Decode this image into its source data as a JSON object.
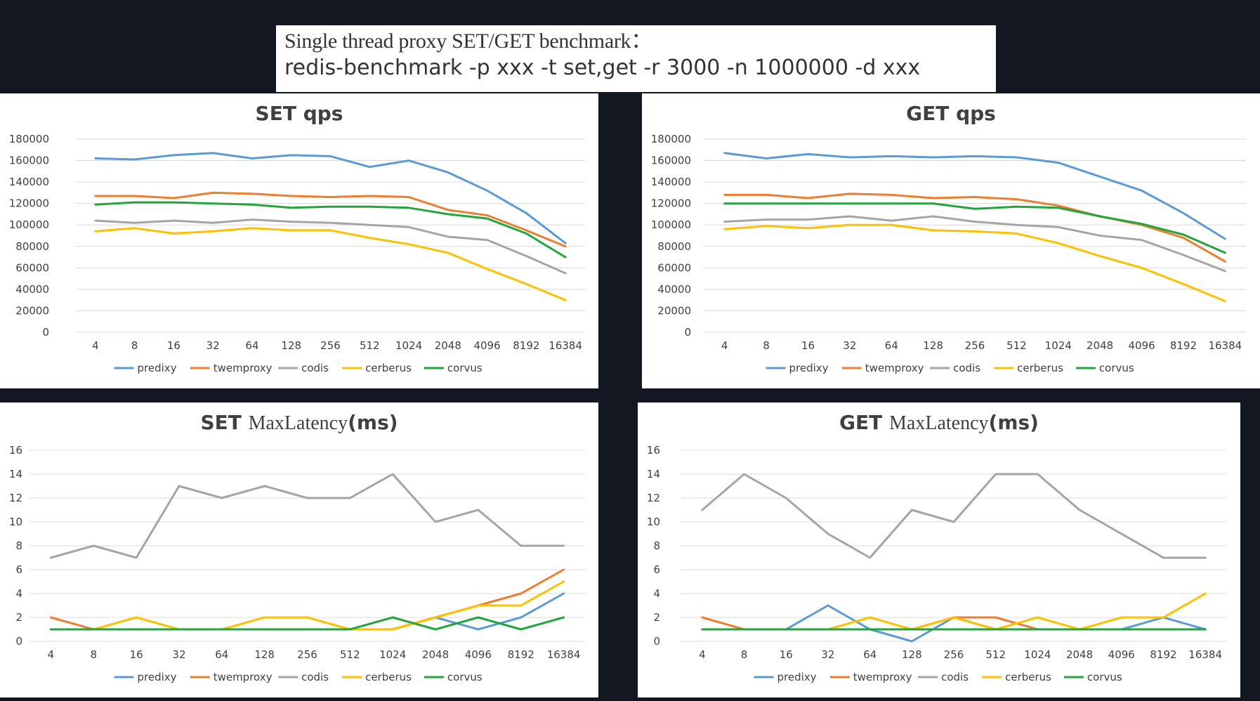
{
  "header": {
    "line1": "Single thread proxy SET/GET benchmark：",
    "line2": "redis-benchmark -p xxx -t set,get -r 3000 -n 1000000 -d xxx"
  },
  "colors": {
    "predixy": "#5b9bd5",
    "twemproxy": "#ed7d31",
    "codis": "#a5a5a5",
    "cerberus": "#ffc000",
    "corvus": "#22a63c"
  },
  "chart_data": [
    {
      "type": "line",
      "title_bold_left": "SET  qps",
      "title_serif": "",
      "title_bold_right": "",
      "categories": [
        "4",
        "8",
        "16",
        "32",
        "64",
        "128",
        "256",
        "512",
        "1024",
        "2048",
        "4096",
        "8192",
        "16384"
      ],
      "ylim": [
        0,
        180000
      ],
      "yticks": [
        0,
        20000,
        40000,
        60000,
        80000,
        100000,
        120000,
        140000,
        160000,
        180000
      ],
      "grid": true,
      "legend_position": "bottom",
      "series": [
        {
          "name": "predixy",
          "values": [
            162000,
            161000,
            165000,
            167000,
            162000,
            165000,
            164000,
            154000,
            160000,
            149000,
            132000,
            111000,
            83000
          ]
        },
        {
          "name": "twemproxy",
          "values": [
            127000,
            127000,
            125000,
            130000,
            129000,
            127000,
            126000,
            127000,
            126000,
            114000,
            109000,
            95000,
            80000
          ]
        },
        {
          "name": "codis",
          "values": [
            104000,
            102000,
            104000,
            102000,
            105000,
            103000,
            102000,
            100000,
            98000,
            89000,
            86000,
            71000,
            55000
          ]
        },
        {
          "name": "cerberus",
          "values": [
            94000,
            97000,
            92000,
            94000,
            97000,
            95000,
            95000,
            88000,
            82000,
            74000,
            59000,
            45000,
            30000
          ]
        },
        {
          "name": "corvus",
          "values": [
            119000,
            121000,
            121000,
            120000,
            119000,
            116000,
            117000,
            117000,
            116000,
            110000,
            106000,
            92000,
            70000
          ]
        }
      ]
    },
    {
      "type": "line",
      "title_bold_left": "GET  qps",
      "title_serif": "",
      "title_bold_right": "",
      "categories": [
        "4",
        "8",
        "16",
        "32",
        "64",
        "128",
        "256",
        "512",
        "1024",
        "2048",
        "4096",
        "8192",
        "16384"
      ],
      "ylim": [
        0,
        180000
      ],
      "yticks": [
        0,
        20000,
        40000,
        60000,
        80000,
        100000,
        120000,
        140000,
        160000,
        180000
      ],
      "grid": true,
      "legend_position": "bottom",
      "series": [
        {
          "name": "predixy",
          "values": [
            167000,
            162000,
            166000,
            163000,
            164000,
            163000,
            164000,
            163000,
            158000,
            145000,
            132000,
            111000,
            87000
          ]
        },
        {
          "name": "twemproxy",
          "values": [
            128000,
            128000,
            125000,
            129000,
            128000,
            125000,
            126000,
            124000,
            118000,
            108000,
            100000,
            88000,
            66000
          ]
        },
        {
          "name": "codis",
          "values": [
            103000,
            105000,
            105000,
            108000,
            104000,
            108000,
            103000,
            100000,
            98000,
            90000,
            86000,
            72000,
            57000
          ]
        },
        {
          "name": "cerberus",
          "values": [
            96000,
            99000,
            97000,
            100000,
            100000,
            95000,
            94000,
            92000,
            83000,
            71000,
            60000,
            45000,
            29000
          ]
        },
        {
          "name": "corvus",
          "values": [
            120000,
            120000,
            120000,
            120000,
            120000,
            120000,
            115000,
            117000,
            116000,
            108000,
            101000,
            91000,
            74000
          ]
        }
      ]
    },
    {
      "type": "line",
      "title_bold_left": "SET ",
      "title_serif": "MaxLatency",
      "title_bold_right": "(ms)",
      "categories": [
        "4",
        "8",
        "16",
        "32",
        "64",
        "128",
        "256",
        "512",
        "1024",
        "2048",
        "4096",
        "8192",
        "16384"
      ],
      "ylim": [
        0,
        16
      ],
      "yticks": [
        0,
        2,
        4,
        6,
        8,
        10,
        12,
        14,
        16
      ],
      "grid": true,
      "legend_position": "bottom",
      "series": [
        {
          "name": "predixy",
          "values": [
            1,
            1,
            1,
            1,
            1,
            1,
            1,
            1,
            1,
            2,
            1,
            2,
            4
          ]
        },
        {
          "name": "twemproxy",
          "values": [
            2,
            1,
            1,
            1,
            1,
            1,
            1,
            1,
            1,
            2,
            3,
            4,
            6
          ]
        },
        {
          "name": "codis",
          "values": [
            7,
            8,
            7,
            13,
            12,
            13,
            12,
            12,
            14,
            10,
            11,
            8,
            8
          ]
        },
        {
          "name": "cerberus",
          "values": [
            1,
            1,
            2,
            1,
            1,
            2,
            2,
            1,
            1,
            2,
            3,
            3,
            5
          ]
        },
        {
          "name": "corvus",
          "values": [
            1,
            1,
            1,
            1,
            1,
            1,
            1,
            1,
            2,
            1,
            2,
            1,
            2
          ]
        }
      ]
    },
    {
      "type": "line",
      "title_bold_left": "GET ",
      "title_serif": "MaxLatency",
      "title_bold_right": "(ms)",
      "categories": [
        "4",
        "8",
        "16",
        "32",
        "64",
        "128",
        "256",
        "512",
        "1024",
        "2048",
        "4096",
        "8192",
        "16384"
      ],
      "ylim": [
        0,
        16
      ],
      "yticks": [
        0,
        2,
        4,
        6,
        8,
        10,
        12,
        14,
        16
      ],
      "grid": true,
      "legend_position": "bottom",
      "series": [
        {
          "name": "predixy",
          "values": [
            1,
            1,
            1,
            3,
            1,
            0,
            2,
            1,
            1,
            1,
            1,
            2,
            1
          ]
        },
        {
          "name": "twemproxy",
          "values": [
            2,
            1,
            1,
            1,
            1,
            1,
            2,
            2,
            1,
            1,
            1,
            1,
            1
          ]
        },
        {
          "name": "codis",
          "values": [
            11,
            14,
            12,
            9,
            7,
            11,
            10,
            14,
            14,
            11,
            9,
            7,
            7
          ]
        },
        {
          "name": "cerberus",
          "values": [
            1,
            1,
            1,
            1,
            2,
            1,
            2,
            1,
            2,
            1,
            2,
            2,
            4
          ]
        },
        {
          "name": "corvus",
          "values": [
            1,
            1,
            1,
            1,
            1,
            1,
            1,
            1,
            1,
            1,
            1,
            1,
            1
          ]
        }
      ]
    }
  ]
}
